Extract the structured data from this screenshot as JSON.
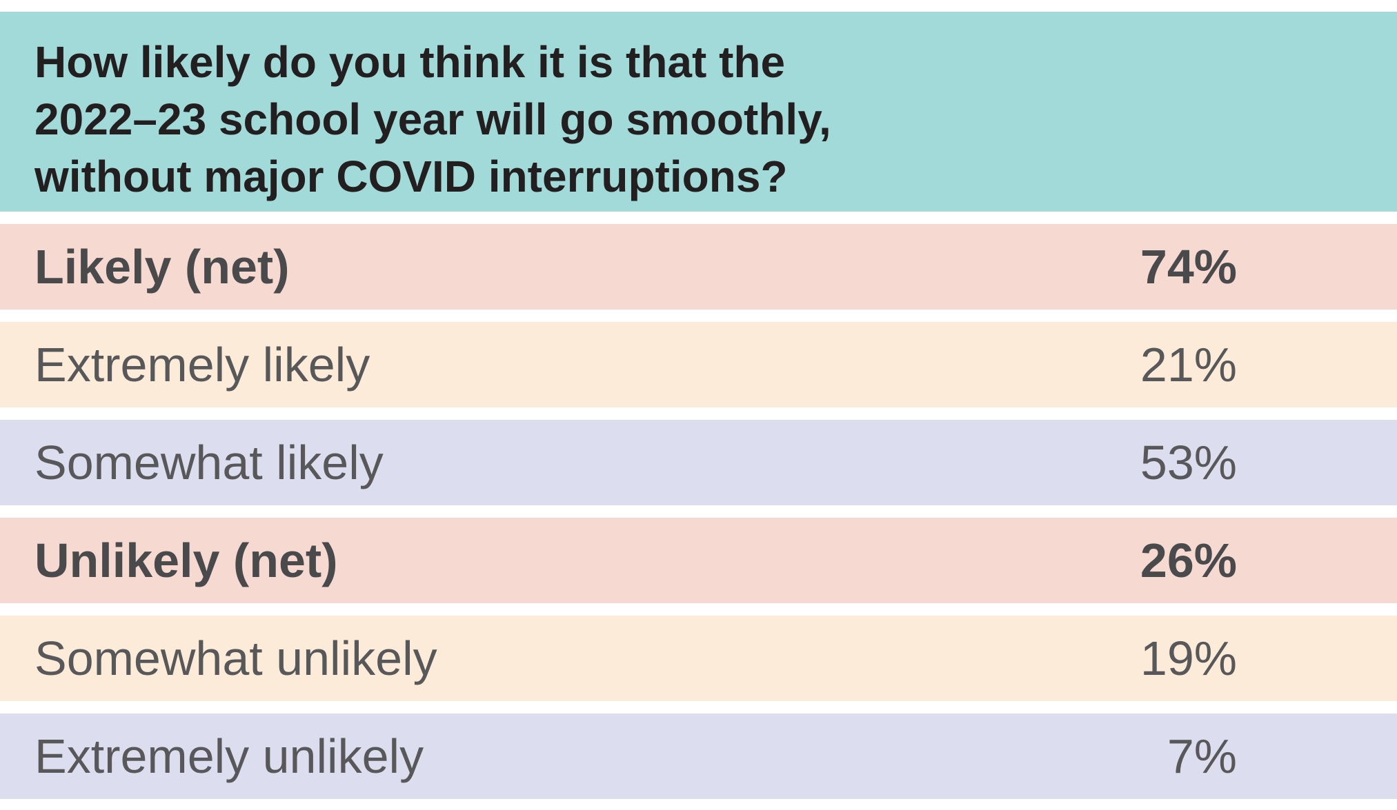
{
  "header": {
    "title": "How likely do you think it is that the\n2022–23 school year will go smoothly,\nwithout major COVID interruptions?"
  },
  "table": {
    "rows": [
      [
        "Likely (net)",
        "74%"
      ],
      [
        "Extremely likely",
        "21%"
      ],
      [
        "Somewhat likely",
        "53%"
      ],
      [
        "Unlikely (net)",
        "26%"
      ],
      [
        "Somewhat unlikely",
        "19%"
      ],
      [
        "Extremely unlikely",
        "7%"
      ]
    ]
  }
}
